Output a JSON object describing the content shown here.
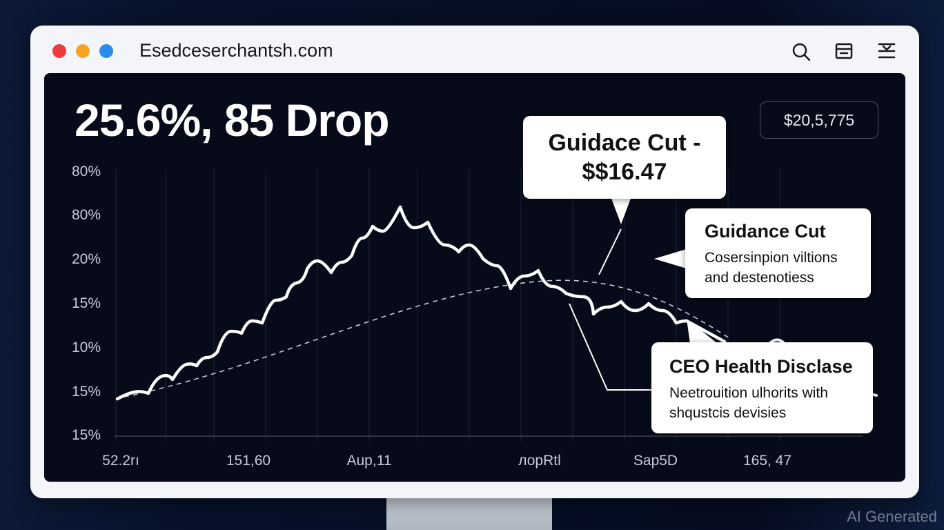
{
  "browser": {
    "url": "Esedceserchantsh.com"
  },
  "headline": "25.6%, 85 Drop",
  "badge": "$20,5,775",
  "chart": {
    "y_labels": [
      "80%",
      "80%",
      "20%",
      "15%",
      "10%",
      "15%",
      "15%"
    ],
    "x_labels": [
      "52.2rı",
      "151,60",
      "Aup,11",
      "лорRtl",
      "Sap5D",
      "165, 47"
    ]
  },
  "callouts": [
    {
      "lines": [
        "Guidace Cut -",
        "$$16.47"
      ]
    },
    {
      "title": "Guidance Cut",
      "lines": [
        "Cosersinpion viltions",
        "and destenotiess"
      ]
    },
    {
      "title": "CEO Health Disclase",
      "lines": [
        "Neetrouition ulhorits with",
        "shqustcis devisies"
      ]
    }
  ],
  "watermark": "AI Generated"
}
